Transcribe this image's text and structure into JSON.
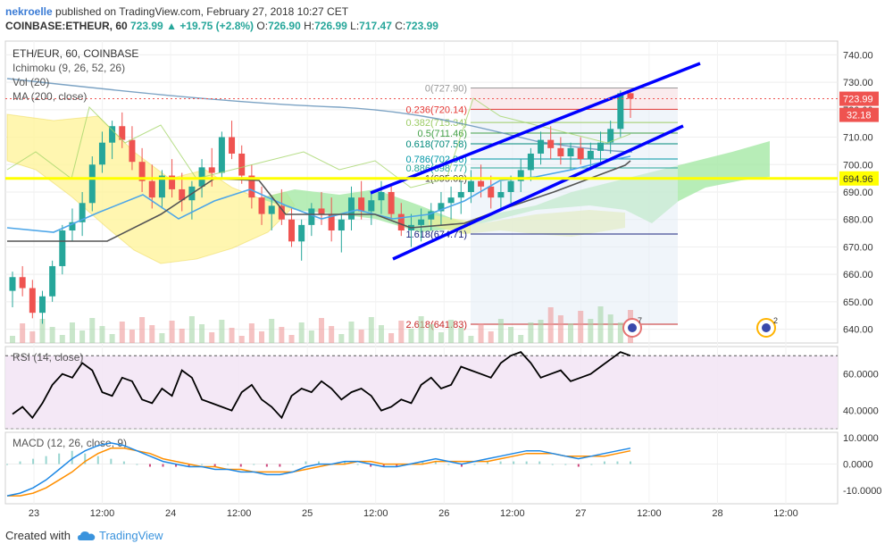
{
  "header": {
    "user": "nekroelle",
    "published": "published on TradingView.com, February 27, 2018 10:27 CET",
    "symbol": "COINBASE:ETHEUR, 60",
    "last": "723.99",
    "change": "+19.75 (+2.8%)",
    "open_label": "O:",
    "open": "726.90",
    "high_label": "H:",
    "high": "726.99",
    "low_label": "L:",
    "low": "717.47",
    "close_label": "C:",
    "close": "723.99"
  },
  "legend": {
    "pair": "ETH/EUR, 60, COINBASE",
    "ichimoku": "Ichimoku (9, 26, 52, 26)",
    "vol": "Vol (20)",
    "ma": "MA (200, close)"
  },
  "colors": {
    "up": "#26a69a",
    "down": "#ef5350",
    "channel": "#0000ff",
    "support": "#ffff00",
    "rsi_bg": "#f3e5f5",
    "cloud_bull": "#a5e8a5",
    "cloud_bear": "#fff59d",
    "macd": "#1e88e5",
    "signal": "#ff8f00"
  },
  "chart_data": {
    "type": "candlestick",
    "price_axis": {
      "ylim": [
        635,
        745
      ],
      "ticks": [
        "740.00",
        "730.00",
        "720.00",
        "710.00",
        "700.00",
        "690.00",
        "680.00",
        "670.00",
        "660.00",
        "650.00",
        "640.00"
      ]
    },
    "x_ticks": [
      "23",
      "12:00",
      "24",
      "12:00",
      "25",
      "12:00",
      "26",
      "12:00",
      "27",
      "12:00",
      "28",
      "12:00"
    ],
    "last_price": "723.99",
    "last_change": "32.18",
    "support_level": "694.96",
    "fibonacci": [
      {
        "label": "0(727.90)",
        "value": 727.9,
        "color": "#999999"
      },
      {
        "label": "0.236(720.14)",
        "value": 720.14,
        "color": "#e53935"
      },
      {
        "label": "0.382(715.34)",
        "value": 715.34,
        "color": "#9ccc65"
      },
      {
        "label": "0.5(711.46)",
        "value": 711.46,
        "color": "#43a047"
      },
      {
        "label": "0.618(707.58)",
        "value": 707.58,
        "color": "#00897b"
      },
      {
        "label": "0.786(702.06)",
        "value": 702.06,
        "color": "#0097a7"
      },
      {
        "label": "0.886(698.77)",
        "value": 698.77,
        "color": "#26a69a"
      },
      {
        "label": "1(695.02)",
        "value": 695.02,
        "color": "#444444"
      },
      {
        "label": "1.618(674.71)",
        "value": 674.71,
        "color": "#1a237e"
      },
      {
        "label": "2.618(641.83)",
        "value": 641.83,
        "color": "#c62828"
      }
    ],
    "candles": [
      [
        654,
        661,
        648,
        659
      ],
      [
        659,
        663,
        652,
        655
      ],
      [
        655,
        658,
        644,
        646
      ],
      [
        646,
        654,
        642,
        652
      ],
      [
        652,
        665,
        650,
        663
      ],
      [
        663,
        678,
        660,
        676
      ],
      [
        676,
        684,
        672,
        679
      ],
      [
        679,
        690,
        674,
        686
      ],
      [
        686,
        703,
        683,
        700
      ],
      [
        700,
        712,
        697,
        708
      ],
      [
        708,
        716,
        702,
        714
      ],
      [
        714,
        719,
        706,
        709
      ],
      [
        709,
        714,
        698,
        701
      ],
      [
        701,
        706,
        690,
        694
      ],
      [
        694,
        700,
        684,
        688
      ],
      [
        688,
        698,
        684,
        696
      ],
      [
        696,
        702,
        688,
        691
      ],
      [
        691,
        697,
        683,
        687
      ],
      [
        687,
        694,
        680,
        692
      ],
      [
        692,
        702,
        688,
        699
      ],
      [
        699,
        706,
        692,
        697
      ],
      [
        697,
        712,
        695,
        710
      ],
      [
        710,
        716,
        702,
        704
      ],
      [
        704,
        707,
        693,
        696
      ],
      [
        696,
        700,
        684,
        688
      ],
      [
        688,
        692,
        678,
        682
      ],
      [
        682,
        688,
        676,
        685
      ],
      [
        685,
        691,
        678,
        680
      ],
      [
        680,
        684,
        670,
        672
      ],
      [
        672,
        680,
        665,
        678
      ],
      [
        678,
        686,
        674,
        684
      ],
      [
        684,
        690,
        678,
        682
      ],
      [
        682,
        688,
        672,
        676
      ],
      [
        676,
        682,
        668,
        680
      ],
      [
        680,
        692,
        676,
        688
      ],
      [
        688,
        694,
        680,
        683
      ],
      [
        683,
        690,
        678,
        687
      ],
      [
        687,
        694,
        682,
        690
      ],
      [
        690,
        692,
        680,
        682
      ],
      [
        682,
        686,
        674,
        676
      ],
      [
        676,
        682,
        670,
        678
      ],
      [
        678,
        684,
        672,
        680
      ],
      [
        680,
        686,
        676,
        683
      ],
      [
        683,
        690,
        678,
        686
      ],
      [
        686,
        692,
        680,
        688
      ],
      [
        688,
        694,
        682,
        690
      ],
      [
        690,
        698,
        686,
        694
      ],
      [
        694,
        700,
        688,
        692
      ],
      [
        692,
        696,
        684,
        688
      ],
      [
        688,
        694,
        684,
        690
      ],
      [
        690,
        696,
        686,
        694
      ],
      [
        694,
        702,
        690,
        698
      ],
      [
        698,
        706,
        694,
        704
      ],
      [
        704,
        712,
        700,
        709
      ],
      [
        709,
        714,
        702,
        706
      ],
      [
        706,
        710,
        700,
        703
      ],
      [
        703,
        708,
        698,
        706
      ],
      [
        706,
        710,
        700,
        702
      ],
      [
        702,
        708,
        698,
        705
      ],
      [
        705,
        712,
        700,
        708
      ],
      [
        708,
        716,
        704,
        713
      ],
      [
        713,
        727,
        710,
        726
      ],
      [
        726,
        727,
        717,
        724
      ]
    ],
    "rsi": {
      "label": "RSI (14, close)",
      "ylim": [
        30,
        75
      ],
      "ticks": [
        "60.0000",
        "40.0000"
      ]
    },
    "macd": {
      "label": "MACD (12, 26, close, 9)",
      "ylim": [
        -15,
        12
      ],
      "ticks": [
        "10.0000",
        "0.0000",
        "-10.0000"
      ]
    },
    "badges": [
      "7",
      "2"
    ]
  },
  "footer": {
    "created": "Created with",
    "brand": "TradingView"
  }
}
